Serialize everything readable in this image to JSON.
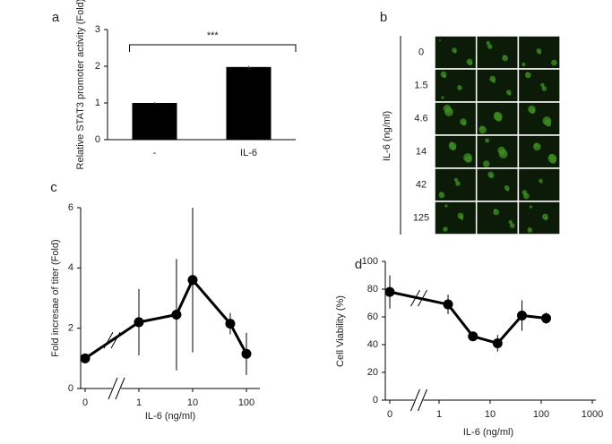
{
  "chart_data": [
    {
      "type": "bar",
      "panel_label": "a",
      "y_label": "Relative STAT3 promoter activity (Fold)",
      "categories": [
        "-",
        "IL-6"
      ],
      "values": [
        1,
        1.98
      ],
      "errors": [
        0.02,
        0.03
      ],
      "color": "#000000",
      "ylim": [
        0,
        3
      ],
      "yticks": [
        0,
        1,
        2,
        3
      ],
      "annotation": "***"
    },
    {
      "type": "image-grid",
      "panel_label": "b",
      "y_label": "IL-6 (ng/ml)",
      "categories": [
        "0",
        "1.5",
        "4.6",
        "14",
        "42",
        "125"
      ]
    },
    {
      "type": "line",
      "panel_label": "c",
      "y_label": "Fold incresae of titer (Fold)",
      "x_label": "IL-6 (ng/ml)",
      "x": [
        0,
        1,
        5,
        10,
        50,
        100
      ],
      "series": [
        {
          "color": "#000000",
          "values": [
            1.0,
            2.2,
            2.45,
            3.6,
            2.15,
            1.15
          ],
          "errors": [
            0.1,
            1.1,
            1.85,
            2.4,
            0.35,
            0.7
          ]
        }
      ],
      "xscale": "log",
      "broken_axis": true,
      "ylim": [
        0,
        6
      ],
      "yticks": [
        0,
        2,
        4,
        6
      ],
      "xticks": [
        0,
        1,
        10,
        100
      ]
    },
    {
      "type": "line",
      "panel_label": "d",
      "y_label": "Cell Viability (%)",
      "x_label": "IL-6 (ng/ml)",
      "x": [
        0,
        1.5,
        4.6,
        14,
        42,
        125
      ],
      "series": [
        {
          "color": "#000000",
          "values": [
            78,
            69,
            46,
            41,
            61,
            59
          ],
          "errors": [
            12,
            7,
            3,
            6,
            11,
            4
          ]
        }
      ],
      "xscale": "log",
      "broken_axis": true,
      "ylim": [
        0,
        100
      ],
      "yticks": [
        0,
        20,
        40,
        60,
        80,
        100
      ],
      "xticks": [
        0,
        1,
        10,
        100,
        1000
      ]
    }
  ]
}
